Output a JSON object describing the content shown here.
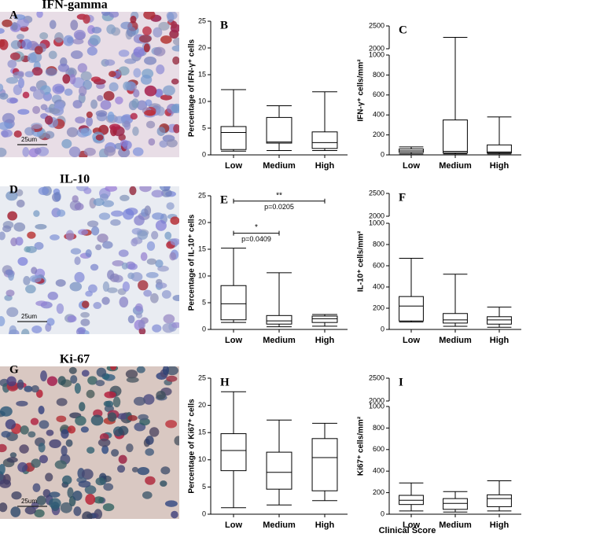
{
  "panels": [
    {
      "letter": "A",
      "title": "IFN-gamma",
      "scale": "25um"
    },
    {
      "letter": "D",
      "title": "IL-10",
      "scale": "25um"
    },
    {
      "letter": "G",
      "title": "Ki-67",
      "scale": "25um"
    }
  ],
  "x_label": "Clinical Score",
  "chart_data": [
    {
      "type": "box",
      "letter": "B",
      "ylabel": "Percentage of IFN-γ⁺ cells",
      "categories": [
        "Low",
        "Medium",
        "High"
      ],
      "min": [
        0.7,
        0.8,
        0.8
      ],
      "q1": [
        1,
        2.2,
        1.2
      ],
      "median": [
        4.2,
        2.4,
        2.3
      ],
      "q3": [
        5.3,
        7,
        4.3
      ],
      "max": [
        12.2,
        9.2,
        11.8
      ],
      "ylim": [
        0,
        25
      ],
      "yticks": [
        0,
        5,
        10,
        15,
        20,
        25
      ]
    },
    {
      "type": "box",
      "letter": "C",
      "ylabel": "IFN-γ⁺ cells/mm²",
      "categories": [
        "Low",
        "Medium",
        "High"
      ],
      "min": [
        10,
        10,
        10
      ],
      "q1": [
        25,
        20,
        20
      ],
      "median": [
        40,
        35,
        30
      ],
      "q3": [
        60,
        350,
        100
      ],
      "max": [
        80,
        2250,
        380
      ],
      "ylim": [
        0,
        2500
      ],
      "axis_break": [
        1000,
        2000
      ],
      "yticks": [
        0,
        200,
        400,
        600,
        800,
        1000,
        2000,
        2500
      ]
    },
    {
      "type": "box",
      "letter": "E",
      "ylabel": "Percentage of IL-10⁺ cells",
      "categories": [
        "Low",
        "Medium",
        "High"
      ],
      "min": [
        1.3,
        0.5,
        0.6
      ],
      "q1": [
        1.8,
        1,
        1.3
      ],
      "median": [
        4.8,
        1.6,
        2
      ],
      "q3": [
        8.2,
        2.6,
        2.5
      ],
      "max": [
        15.2,
        10.6,
        2.8
      ],
      "ylim": [
        0,
        25
      ],
      "yticks": [
        0,
        5,
        10,
        15,
        20,
        25
      ],
      "annotations": [
        {
          "from": 0,
          "to": 1,
          "y": 18,
          "stars": "*",
          "text": "p=0.0409"
        },
        {
          "from": 0,
          "to": 2,
          "y": 24,
          "stars": "**",
          "text": "p=0.0205"
        }
      ]
    },
    {
      "type": "box",
      "letter": "F",
      "ylabel": "IL-10⁺ cells/mm²",
      "categories": [
        "Low",
        "Medium",
        "High"
      ],
      "min": [
        70,
        30,
        20
      ],
      "q1": [
        80,
        60,
        50
      ],
      "median": [
        220,
        90,
        90
      ],
      "q3": [
        310,
        150,
        120
      ],
      "max": [
        670,
        520,
        210
      ],
      "ylim": [
        0,
        2500
      ],
      "axis_break": [
        1000,
        2000
      ],
      "yticks": [
        0,
        200,
        400,
        600,
        800,
        1000,
        2000,
        2500
      ]
    },
    {
      "type": "box",
      "letter": "H",
      "ylabel": "Percentage of Ki67⁺ cells",
      "categories": [
        "Low",
        "Medium",
        "High"
      ],
      "min": [
        1.2,
        1.7,
        2.5
      ],
      "q1": [
        8,
        4.6,
        4.3
      ],
      "median": [
        11.7,
        7.7,
        10.4
      ],
      "q3": [
        14.8,
        11.4,
        13.9
      ],
      "max": [
        22.5,
        17.3,
        16.7
      ],
      "ylim": [
        0,
        25
      ],
      "yticks": [
        0,
        5,
        10,
        15,
        20,
        25
      ]
    },
    {
      "type": "box",
      "letter": "I",
      "ylabel": "Ki67⁺ cells/mm²",
      "categories": [
        "Low",
        "Medium",
        "High"
      ],
      "min": [
        30,
        20,
        30
      ],
      "q1": [
        90,
        45,
        70
      ],
      "median": [
        130,
        100,
        145
      ],
      "q3": [
        175,
        145,
        180
      ],
      "max": [
        290,
        210,
        310
      ],
      "ylim": [
        0,
        2500
      ],
      "axis_break": [
        1000,
        2000
      ],
      "yticks": [
        0,
        200,
        400,
        600,
        800,
        1000,
        2000,
        2500
      ]
    }
  ]
}
